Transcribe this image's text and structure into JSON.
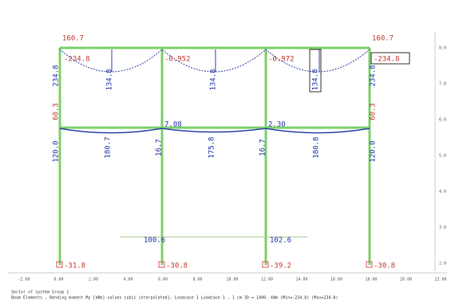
{
  "labels": {
    "top": [
      "160.7",
      "160.7"
    ],
    "beam_top": [
      "-234.8",
      "-0.952",
      "-0.972",
      "-234.8"
    ],
    "span_top": [
      "134.8",
      "134.8",
      "134.8"
    ],
    "col_top": [
      "234.8",
      "234.8"
    ],
    "col_mid": [
      "60.3",
      "60.3"
    ],
    "beam_mid": [
      "7.08",
      "2.30"
    ],
    "span_mid": [
      "180.7",
      "175.8",
      "180.8"
    ],
    "col_low": [
      "120.0",
      "16.7",
      "16.7",
      "120.0"
    ],
    "base_line": [
      "100.6",
      "102.6"
    ],
    "base": [
      "-31.8",
      "-30.8",
      "-39.2",
      "-30.8"
    ]
  },
  "axis": {
    "right": [
      "8.0",
      "7.0",
      "6.0",
      "5.0",
      "4.0",
      "3.0",
      "2.0"
    ],
    "bottom": [
      "-2.00",
      "0.00",
      "2.00",
      "4.00",
      "6.00",
      "8.00",
      "10.00",
      "12.00",
      "14.00",
      "16.00",
      "18.00",
      "20.00",
      "22.00"
    ]
  },
  "footer": [
    "Sector of system Group 1",
    "Beam Elements , Bending moment My [kNm] values cubic interpolated], Loadcase 1 Loadcase 1 , 1 cm 3D = 1400. kNm (Min=-234.8) (Max=234.8)"
  ]
}
